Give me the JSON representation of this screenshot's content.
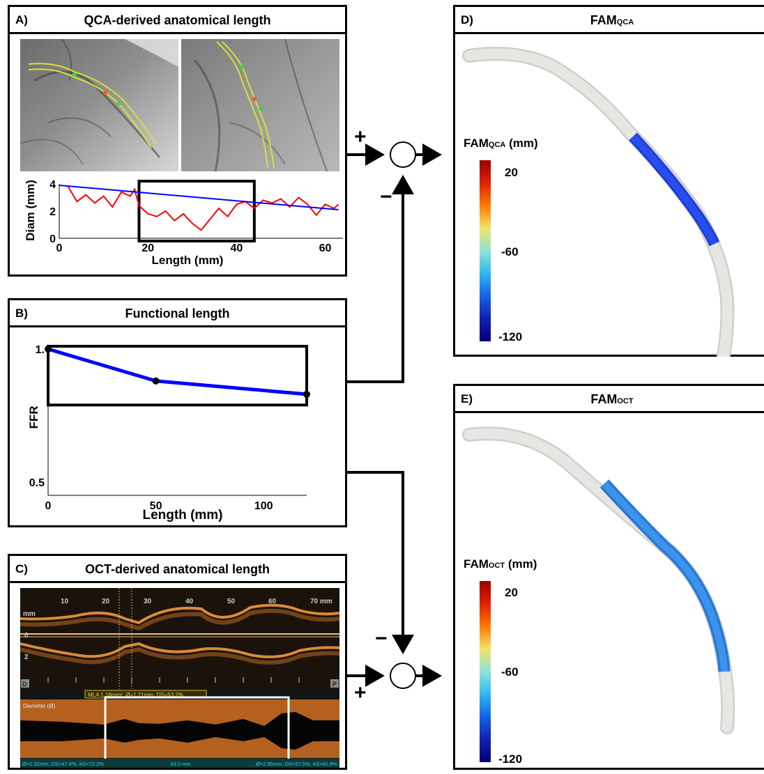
{
  "panel_a": {
    "letter": "A)",
    "title": "QCA-derived anatomical length",
    "chart": {
      "ylabel": "Diam (mm)",
      "xlabel": "Length (mm)",
      "yticks": [
        "0",
        "2",
        "4"
      ],
      "xticks": [
        "0",
        "20",
        "40",
        "60"
      ]
    }
  },
  "panel_b": {
    "letter": "B)",
    "title": "Functional length",
    "chart": {
      "ylabel": "FFR",
      "xlabel": "Length (mm)",
      "yticks": [
        "0.5",
        "1."
      ],
      "xticks": [
        "0",
        "50",
        "100"
      ]
    }
  },
  "panel_c": {
    "letter": "C)",
    "title": "OCT-derived anatomical length",
    "oct": {
      "scale_ticks": [
        "10",
        "20",
        "30",
        "40",
        "50",
        "60",
        "70 mm"
      ],
      "depth_labels": [
        "mm",
        "0",
        "2"
      ],
      "corner_left": "D",
      "corner_right": "P",
      "mla_label": "MLA 1.18mm², Ø=1.21mm, DS=53.2%",
      "diameter_label": "Diameter (Ø)",
      "footer_left": "Ø=2.32mm, DS=47.8%, AS=72.2%",
      "footer_mid": "43.0 mm",
      "footer_right": "Ø=2.85mm, DS=57.5%, AS=81.8%"
    }
  },
  "panel_d": {
    "letter": "D)",
    "title_main": "FAM",
    "title_sub": "QCA",
    "cb_main": "FAM",
    "cb_sub": "QCA",
    "cb_unit": " (mm)",
    "cb_ticks": [
      "20",
      "-60",
      "-120"
    ]
  },
  "panel_e": {
    "letter": "E)",
    "title_main": "FAM",
    "title_sub": "OCT",
    "cb_main": "FAM",
    "cb_sub": "OCT",
    "cb_unit": " (mm)",
    "cb_ticks": [
      "20",
      "-60",
      "-120"
    ]
  },
  "junctions": {
    "top_plus": "+",
    "top_minus": "−",
    "bottom_minus": "−",
    "bottom_plus": "+"
  },
  "chart_data": [
    {
      "type": "line",
      "xlabel": "Length (mm)",
      "ylabel": "Diam (mm)",
      "xlim": [
        0,
        64
      ],
      "ylim": [
        0,
        4
      ],
      "series": [
        {
          "color": "#ff0000",
          "x": [
            2,
            4,
            6,
            8,
            10,
            12,
            14,
            16,
            17,
            18,
            20,
            22,
            24,
            26,
            28,
            30,
            32,
            34,
            36,
            38,
            40,
            42,
            44,
            46,
            48,
            50,
            52,
            54,
            56,
            58,
            60,
            62,
            63
          ],
          "y": [
            3.8,
            2.7,
            3.2,
            2.6,
            3.1,
            2.3,
            3.4,
            3.1,
            3.6,
            2.4,
            1.8,
            1.6,
            2.0,
            1.3,
            1.8,
            1.1,
            0.6,
            1.4,
            2.2,
            1.6,
            2.5,
            2.7,
            2.2,
            2.8,
            2.6,
            2.9,
            2.3,
            3.0,
            2.5,
            1.7,
            2.5,
            2.2,
            2.5
          ]
        },
        {
          "color": "#0000ff",
          "x": [
            0,
            63
          ],
          "y": [
            3.9,
            2.1
          ]
        }
      ],
      "highlight_box": {
        "x": [
          18,
          44
        ],
        "y": [
          0,
          4
        ]
      }
    },
    {
      "type": "line",
      "xlabel": "Length (mm)",
      "ylabel": "FFR",
      "xlim": [
        0,
        120
      ],
      "ylim": [
        0.45,
        1.0
      ],
      "series": [
        {
          "color": "#0000ff",
          "x": [
            0,
            50,
            120
          ],
          "y": [
            1.0,
            0.88,
            0.83
          ]
        }
      ],
      "highlight_box": {
        "x": [
          0,
          120
        ],
        "y": [
          0.8,
          1.0
        ]
      }
    }
  ]
}
